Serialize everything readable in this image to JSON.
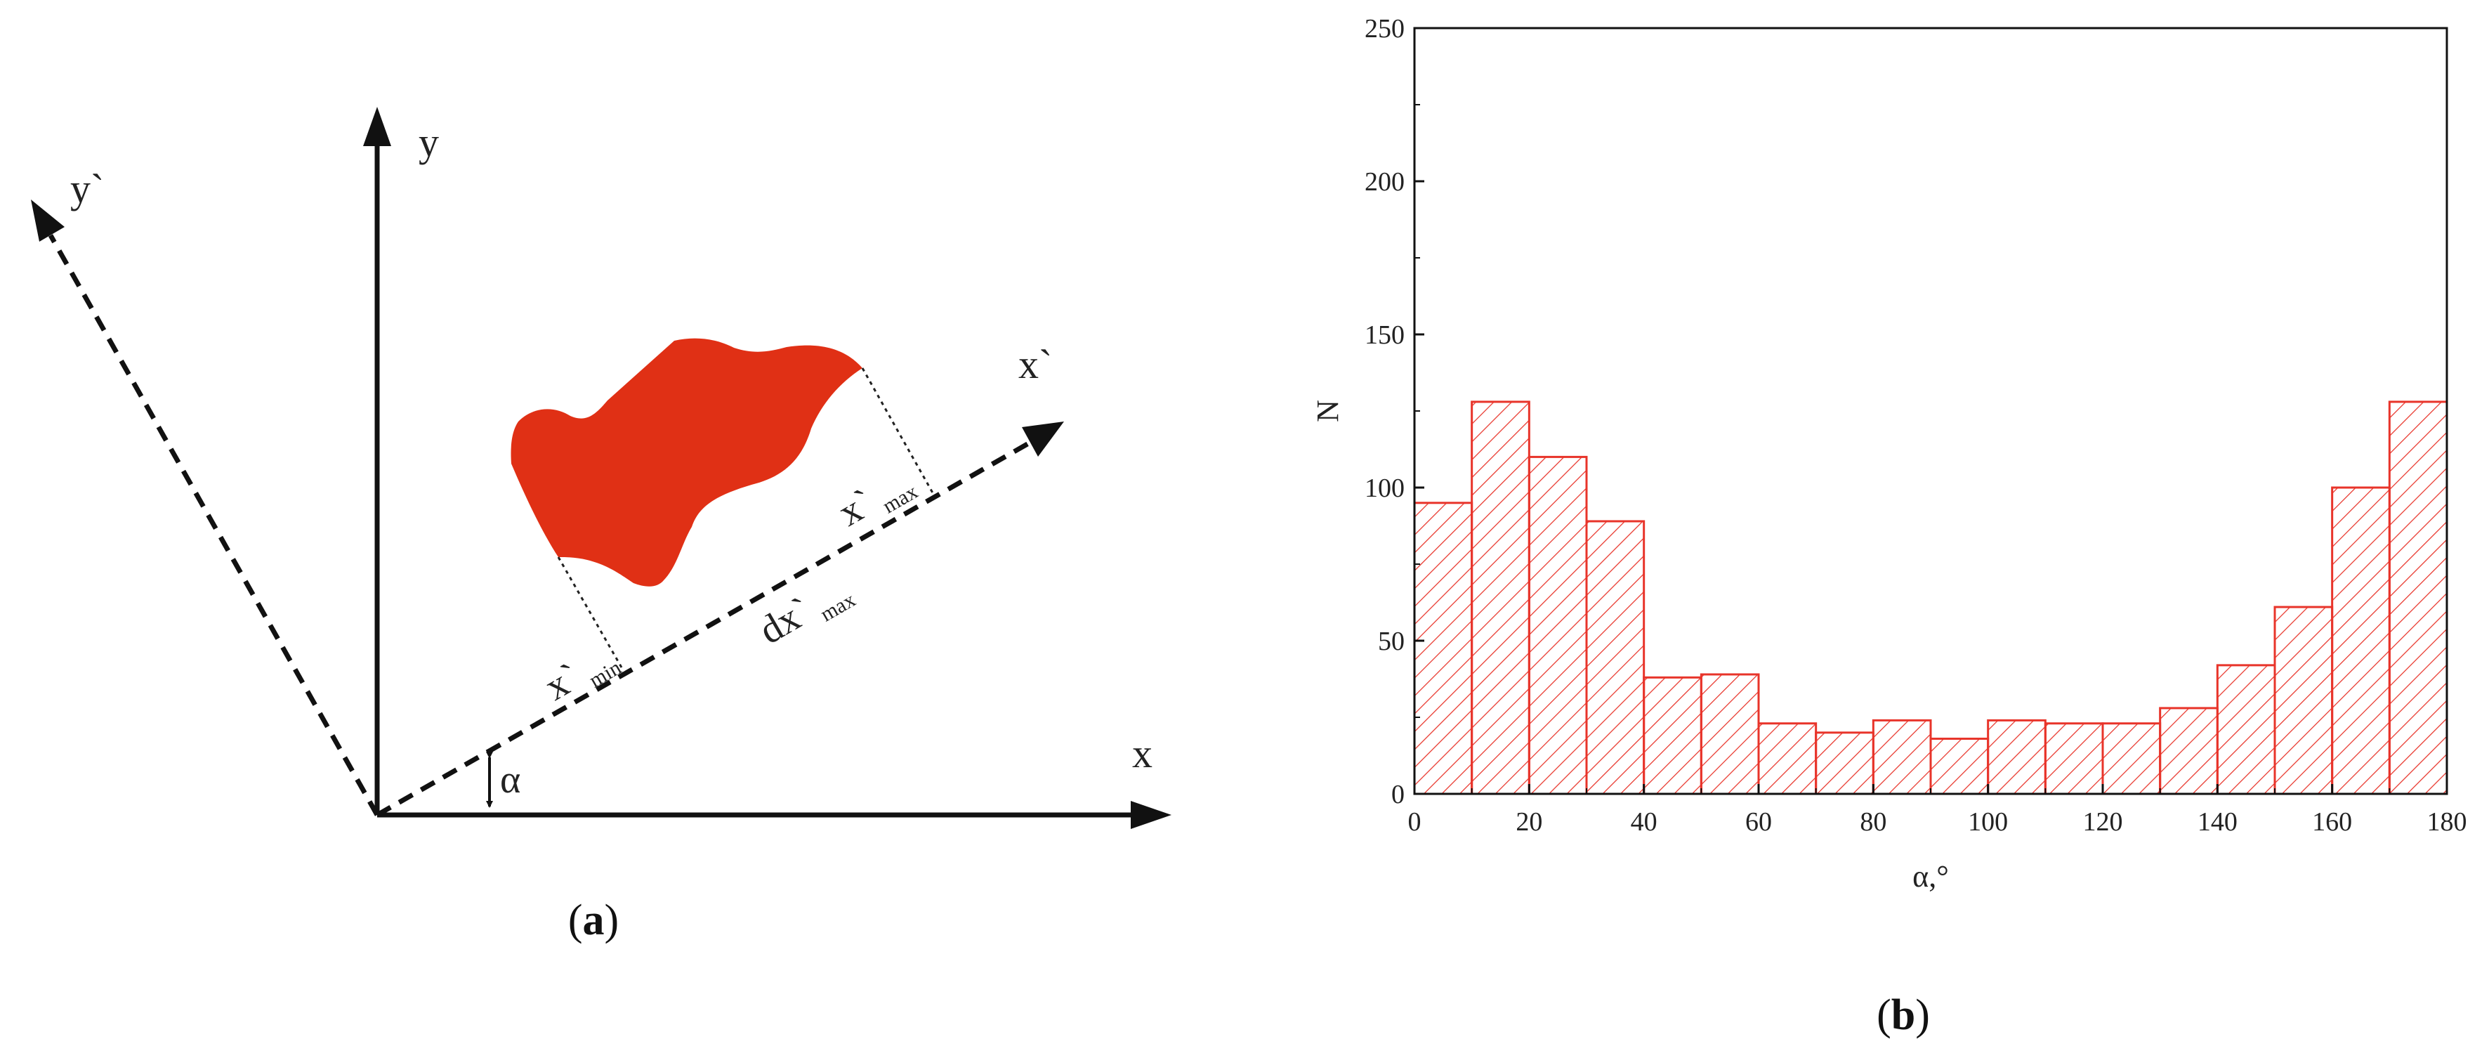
{
  "panel_a": {
    "caption_open": "(",
    "caption_letter": "a",
    "caption_close": ")",
    "labels": {
      "y": "y",
      "y_prime": "y`",
      "x": "x",
      "x_prime": "x`",
      "alpha": "α",
      "x_min_base": "x`",
      "x_min_sub": "min",
      "x_max_base": "x`",
      "x_max_sub": "max",
      "dx_max_base": "dx`",
      "dx_max_sub": "max"
    },
    "colors": {
      "particle": "#e03015",
      "axes": "#111111"
    }
  },
  "panel_b": {
    "caption_open": "(",
    "caption_letter": "b",
    "caption_close": ")"
  },
  "chart_data": {
    "type": "bar",
    "bar_style": "histogram, hatched",
    "color": "#e8342a",
    "x": [
      0,
      10,
      20,
      30,
      40,
      50,
      60,
      70,
      80,
      90,
      100,
      110,
      120,
      130,
      140,
      150,
      160,
      170
    ],
    "bin_width": 10,
    "values": [
      95,
      128,
      110,
      89,
      38,
      39,
      23,
      20,
      24,
      18,
      24,
      23,
      23,
      28,
      42,
      61,
      100,
      128
    ],
    "xlabel": "α,°",
    "ylabel": "N",
    "xlim": [
      0,
      180
    ],
    "ylim": [
      0,
      250
    ],
    "xticks": [
      0,
      20,
      40,
      60,
      80,
      100,
      120,
      140,
      160,
      180
    ],
    "yticks": [
      0,
      50,
      100,
      150,
      200,
      250
    ],
    "grid": false
  }
}
